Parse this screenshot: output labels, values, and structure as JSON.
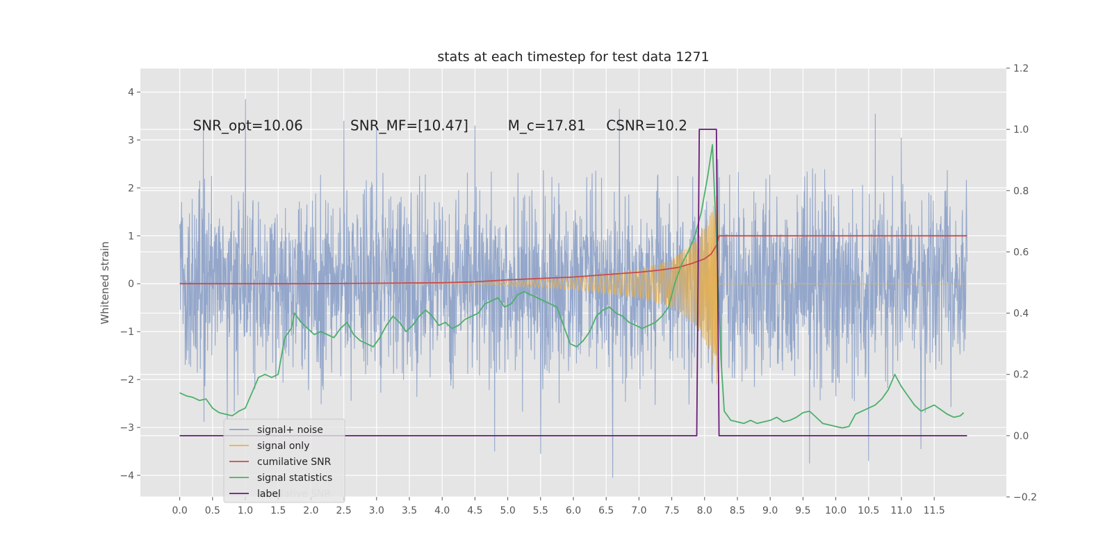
{
  "chart_data": {
    "type": "line",
    "title": "stats at each timestep for test data 1271",
    "ylabel": "Whitened strain",
    "xlabel": "",
    "xlim": [
      -0.6,
      12.6
    ],
    "ylim": [
      -4.45,
      4.5
    ],
    "y2lim": [
      -0.2,
      1.2
    ],
    "grid": true,
    "x_ticks": [
      "0.0",
      "0.5",
      "1.0",
      "1.5",
      "2.0",
      "2.5",
      "3.0",
      "3.5",
      "4.0",
      "4.5",
      "5.0",
      "5.5",
      "6.0",
      "6.5",
      "7.0",
      "7.5",
      "8.0",
      "8.5",
      "9.0",
      "9.5",
      "10.0",
      "10.5",
      "11.0",
      "11.5"
    ],
    "y_ticks": [
      4,
      3,
      2,
      1,
      0,
      -1,
      -2,
      -3,
      -4
    ],
    "y_tick_labels": [
      "4",
      "3",
      "2",
      "1",
      "0",
      "−1",
      "−2",
      "−3",
      "−4"
    ],
    "y2_ticks": [
      1.2,
      1.0,
      0.8,
      0.6,
      0.4,
      0.2,
      0.0,
      -0.2
    ],
    "y2_tick_labels": [
      "1.2",
      "1.0",
      "0.8",
      "0.6",
      "0.4",
      "0.2",
      "0.0",
      "−0.2"
    ],
    "annotations": [
      {
        "text": "SNR_opt=10.06",
        "x": 0.2,
        "y": 3.3
      },
      {
        "text": "SNR_MF=[10.47]",
        "x": 2.6,
        "y": 3.3
      },
      {
        "text": "M_c=17.81",
        "x": 5.0,
        "y": 3.3
      },
      {
        "text": "CSNR=10.2",
        "x": 6.5,
        "y": 3.3
      }
    ],
    "legend": {
      "placement": "lower-left",
      "entries": [
        "signal+ noise",
        "signal only",
        "cumilative SNR",
        "signal statistics",
        "label"
      ]
    },
    "legend_overlap_text": "cumilative SNR",
    "series": [
      {
        "name": "signal+ noise",
        "color": "#8fa3c9",
        "axis": "left",
        "style": "dense-noise",
        "x_range": [
          0.0,
          12.0
        ],
        "typical_envelope": [
          -2.6,
          2.3
        ],
        "peaks": [
          [
            0.36,
            3.25
          ],
          [
            1.0,
            3.85
          ],
          [
            2.5,
            3.4
          ],
          [
            3.0,
            3.25
          ],
          [
            4.5,
            3.3
          ],
          [
            6.7,
            3.65
          ],
          [
            8.2,
            2.6
          ],
          [
            10.6,
            3.55
          ],
          [
            11.0,
            3.05
          ],
          [
            6.6,
            -4.05
          ],
          [
            9.6,
            -3.75
          ],
          [
            10.5,
            -3.7
          ],
          [
            5.5,
            -3.55
          ],
          [
            11.3,
            -3.45
          ],
          [
            4.8,
            -3.5
          ]
        ]
      },
      {
        "name": "signal only",
        "color": "#e8b04e",
        "axis": "left",
        "style": "chirp",
        "x_range": [
          0.0,
          12.0
        ],
        "merger_time": 8.22,
        "envelope": [
          [
            4.3,
            0.0
          ],
          [
            5.0,
            0.05
          ],
          [
            6.0,
            0.12
          ],
          [
            7.0,
            0.3
          ],
          [
            7.5,
            0.5
          ],
          [
            7.9,
            0.95
          ],
          [
            8.1,
            1.5
          ],
          [
            8.2,
            2.2
          ],
          [
            8.22,
            0.0
          ]
        ]
      },
      {
        "name": "cumilative SNR",
        "color": "#c94a4a",
        "axis": "left",
        "x": [
          0.0,
          1.0,
          2.0,
          3.0,
          4.0,
          4.5,
          5.0,
          5.5,
          6.0,
          6.5,
          7.0,
          7.3,
          7.6,
          7.8,
          8.0,
          8.1,
          8.18,
          8.22,
          8.23,
          12.0
        ],
        "values": [
          0.0,
          0.0,
          0.0,
          0.01,
          0.02,
          0.04,
          0.08,
          0.11,
          0.14,
          0.19,
          0.24,
          0.28,
          0.34,
          0.42,
          0.52,
          0.62,
          0.8,
          1.0,
          1.0,
          1.0
        ]
      },
      {
        "name": "signal statistics",
        "color": "#4caf6a",
        "axis": "right",
        "x": [
          0.0,
          0.1,
          0.2,
          0.3,
          0.4,
          0.5,
          0.6,
          0.7,
          0.8,
          0.9,
          1.0,
          1.1,
          1.2,
          1.3,
          1.4,
          1.5,
          1.6,
          1.7,
          1.75,
          1.85,
          1.95,
          2.05,
          2.15,
          2.25,
          2.35,
          2.45,
          2.55,
          2.65,
          2.75,
          2.85,
          2.95,
          3.05,
          3.15,
          3.25,
          3.35,
          3.45,
          3.55,
          3.65,
          3.75,
          3.85,
          3.95,
          4.05,
          4.15,
          4.25,
          4.35,
          4.45,
          4.55,
          4.65,
          4.75,
          4.85,
          4.95,
          5.05,
          5.15,
          5.25,
          5.35,
          5.45,
          5.55,
          5.65,
          5.75,
          5.85,
          5.95,
          6.05,
          6.15,
          6.25,
          6.35,
          6.45,
          6.55,
          6.65,
          6.75,
          6.85,
          6.95,
          7.05,
          7.15,
          7.25,
          7.35,
          7.45,
          7.55,
          7.65,
          7.75,
          7.85,
          7.95,
          8.05,
          8.12,
          8.15,
          8.2,
          8.25,
          8.3,
          8.4,
          8.5,
          8.6,
          8.7,
          8.8,
          8.9,
          9.0,
          9.1,
          9.2,
          9.3,
          9.4,
          9.5,
          9.6,
          9.7,
          9.8,
          9.9,
          10.0,
          10.1,
          10.2,
          10.3,
          10.4,
          10.5,
          10.6,
          10.7,
          10.8,
          10.9,
          11.0,
          11.1,
          11.2,
          11.3,
          11.4,
          11.5,
          11.6,
          11.7,
          11.8,
          11.9,
          11.95
        ],
        "values": [
          0.14,
          0.13,
          0.125,
          0.115,
          0.12,
          0.09,
          0.075,
          0.07,
          0.065,
          0.08,
          0.09,
          0.14,
          0.19,
          0.2,
          0.19,
          0.2,
          0.32,
          0.35,
          0.4,
          0.37,
          0.35,
          0.33,
          0.34,
          0.33,
          0.32,
          0.35,
          0.37,
          0.33,
          0.31,
          0.3,
          0.29,
          0.32,
          0.36,
          0.39,
          0.37,
          0.34,
          0.36,
          0.39,
          0.41,
          0.39,
          0.36,
          0.37,
          0.35,
          0.36,
          0.38,
          0.39,
          0.4,
          0.43,
          0.44,
          0.45,
          0.42,
          0.43,
          0.46,
          0.47,
          0.46,
          0.45,
          0.44,
          0.43,
          0.42,
          0.36,
          0.3,
          0.29,
          0.31,
          0.34,
          0.39,
          0.41,
          0.42,
          0.4,
          0.39,
          0.37,
          0.36,
          0.35,
          0.36,
          0.37,
          0.39,
          0.42,
          0.5,
          0.56,
          0.6,
          0.65,
          0.73,
          0.85,
          0.95,
          0.8,
          0.55,
          0.25,
          0.08,
          0.05,
          0.045,
          0.04,
          0.05,
          0.04,
          0.045,
          0.05,
          0.06,
          0.045,
          0.05,
          0.06,
          0.075,
          0.08,
          0.06,
          0.04,
          0.035,
          0.03,
          0.025,
          0.03,
          0.07,
          0.08,
          0.09,
          0.1,
          0.12,
          0.15,
          0.2,
          0.16,
          0.13,
          0.1,
          0.08,
          0.09,
          0.1,
          0.085,
          0.07,
          0.06,
          0.065,
          0.075
        ]
      },
      {
        "name": "label",
        "color": "#6a1a7a",
        "axis": "right",
        "x": [
          0.0,
          7.88,
          7.92,
          8.18,
          8.22,
          12.0
        ],
        "values": [
          0.0,
          0.0,
          1.0,
          1.0,
          0.0,
          0.0
        ]
      }
    ]
  }
}
